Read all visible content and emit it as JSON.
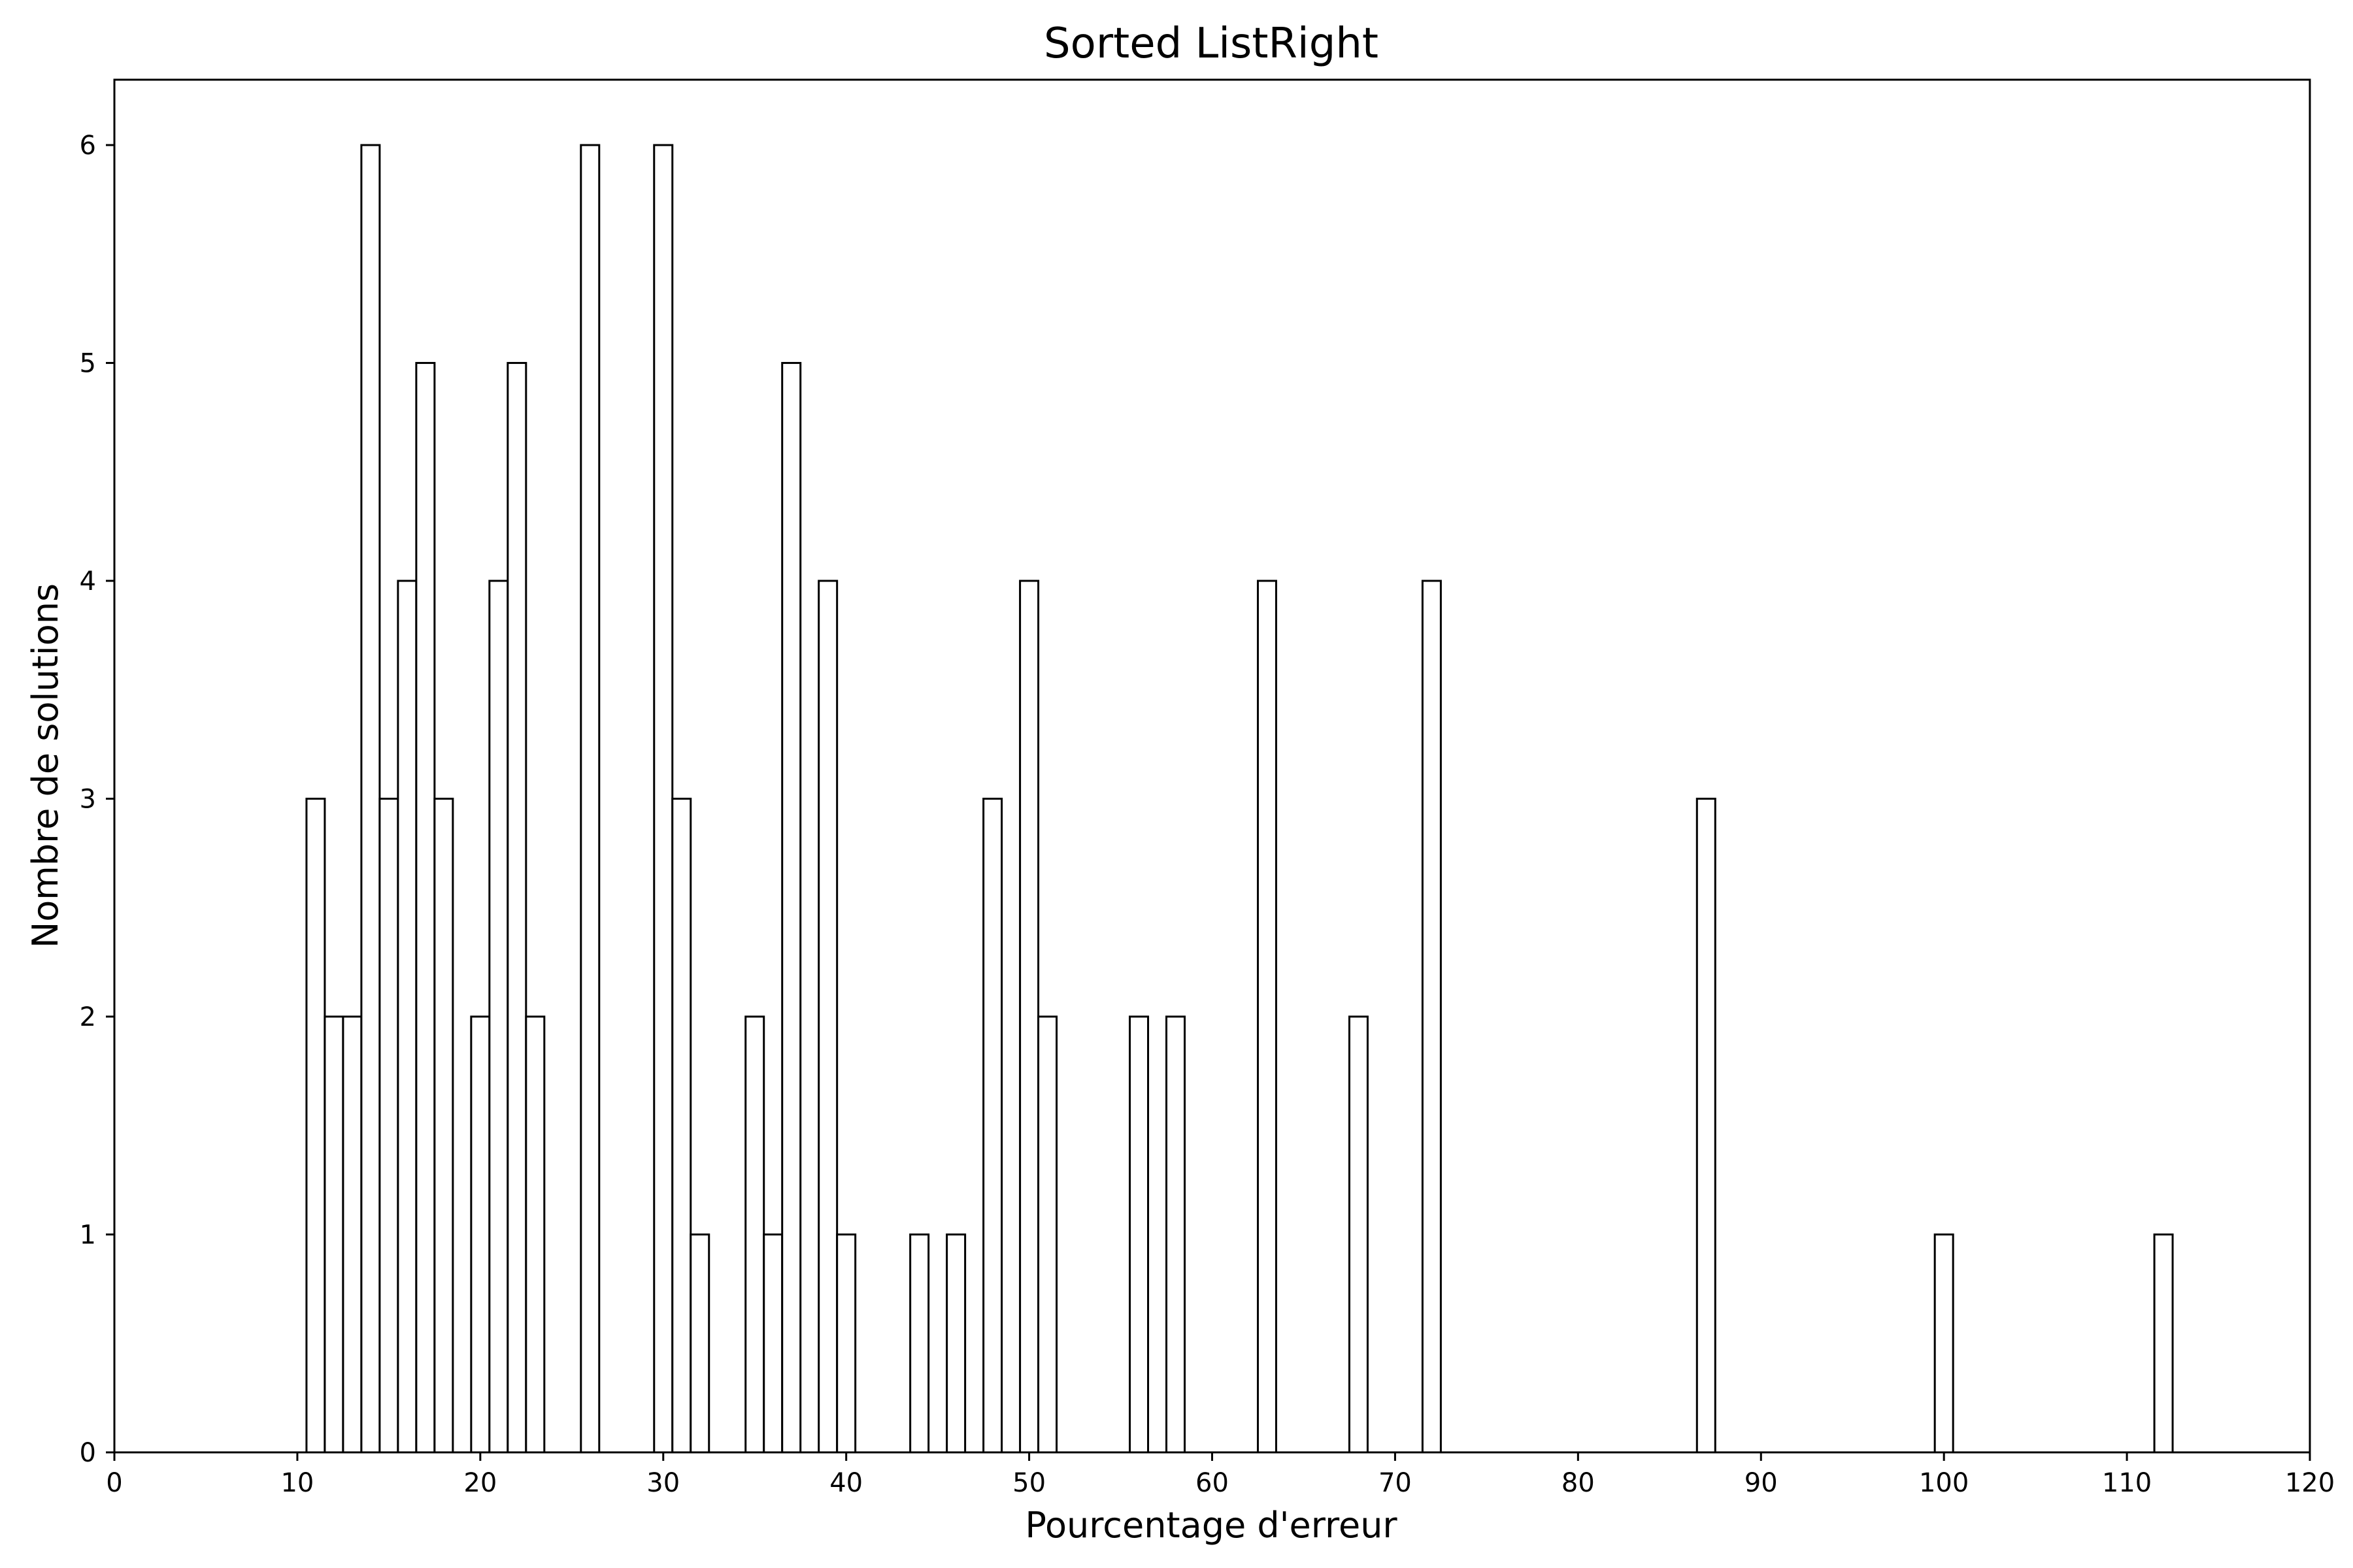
{
  "chart_data": {
    "type": "bar",
    "title": "Sorted ListRight",
    "xlabel": "Pourcentage d'erreur",
    "ylabel": "Nombre de solutions",
    "xlim": [
      0,
      120
    ],
    "ylim": [
      0,
      6.3
    ],
    "bin_width": 1,
    "grid": false,
    "x_ticks": [
      "0",
      "10",
      "20",
      "30",
      "40",
      "50",
      "60",
      "70",
      "80",
      "90",
      "100",
      "110",
      "120"
    ],
    "y_ticks": [
      "0",
      "1",
      "2",
      "3",
      "4",
      "5",
      "6"
    ],
    "bar_fill": "#ffffff",
    "bar_stroke": "#000000",
    "bins": [
      {
        "x": 11,
        "count": 3
      },
      {
        "x": 12,
        "count": 2
      },
      {
        "x": 13,
        "count": 2
      },
      {
        "x": 14,
        "count": 6
      },
      {
        "x": 15,
        "count": 3
      },
      {
        "x": 16,
        "count": 4
      },
      {
        "x": 17,
        "count": 5
      },
      {
        "x": 18,
        "count": 3
      },
      {
        "x": 20,
        "count": 2
      },
      {
        "x": 21,
        "count": 4
      },
      {
        "x": 22,
        "count": 5
      },
      {
        "x": 23,
        "count": 2
      },
      {
        "x": 26,
        "count": 6
      },
      {
        "x": 30,
        "count": 6
      },
      {
        "x": 31,
        "count": 3
      },
      {
        "x": 32,
        "count": 1
      },
      {
        "x": 35,
        "count": 2
      },
      {
        "x": 36,
        "count": 1
      },
      {
        "x": 37,
        "count": 5
      },
      {
        "x": 39,
        "count": 4
      },
      {
        "x": 40,
        "count": 1
      },
      {
        "x": 44,
        "count": 1
      },
      {
        "x": 46,
        "count": 1
      },
      {
        "x": 48,
        "count": 3
      },
      {
        "x": 50,
        "count": 4
      },
      {
        "x": 51,
        "count": 2
      },
      {
        "x": 56,
        "count": 2
      },
      {
        "x": 58,
        "count": 2
      },
      {
        "x": 63,
        "count": 4
      },
      {
        "x": 68,
        "count": 2
      },
      {
        "x": 72,
        "count": 4
      },
      {
        "x": 87,
        "count": 3
      },
      {
        "x": 100,
        "count": 1
      },
      {
        "x": 112,
        "count": 1
      }
    ]
  }
}
